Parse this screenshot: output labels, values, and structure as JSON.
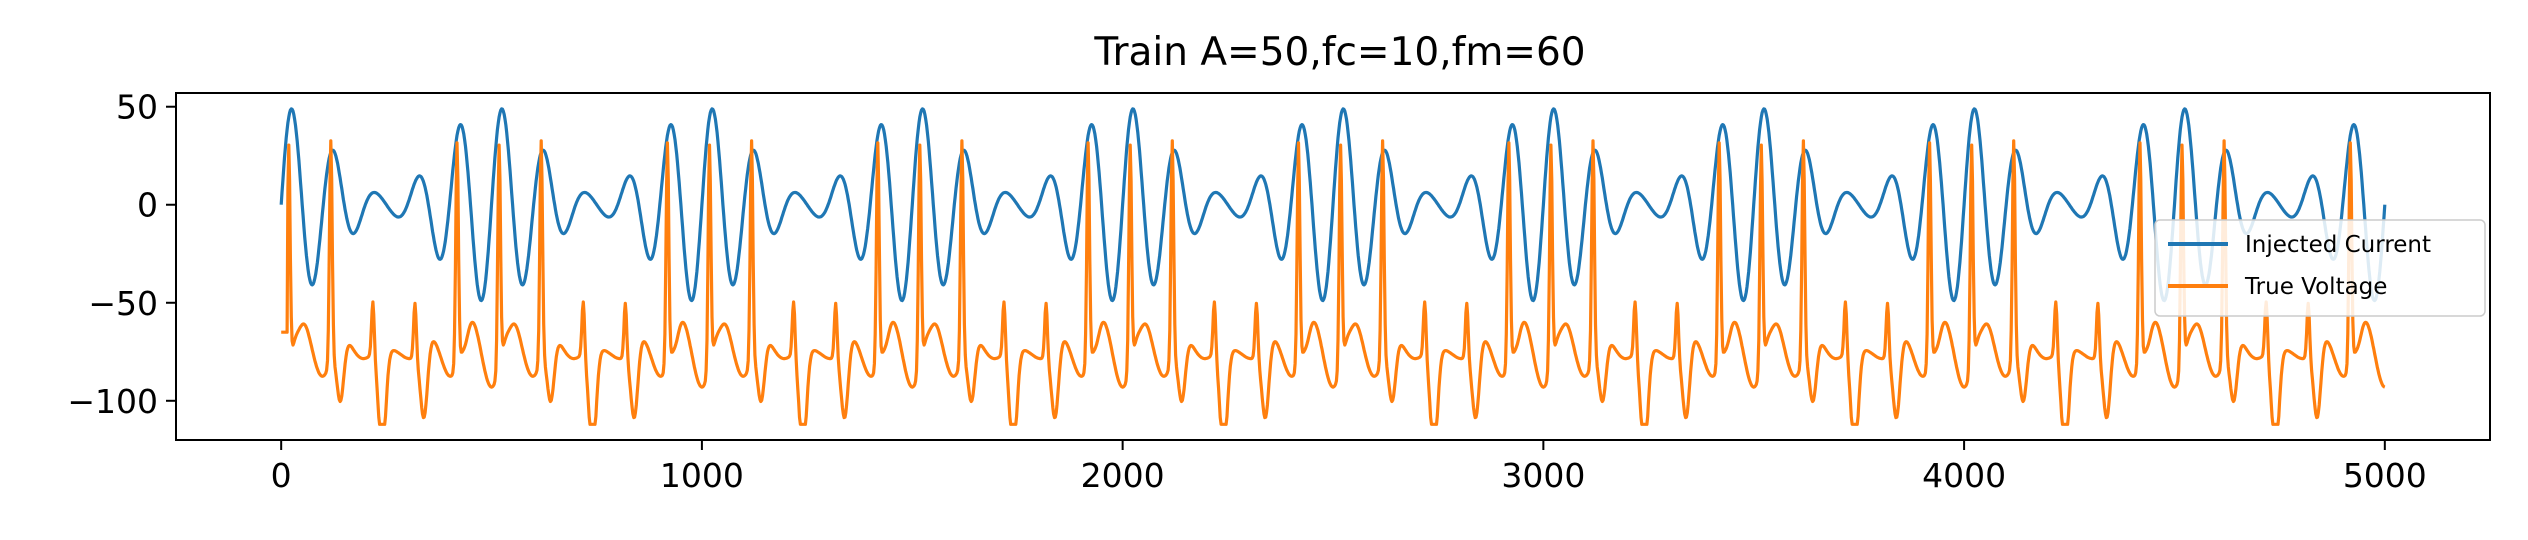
{
  "chart_data": {
    "type": "line",
    "title": "Train A=50,fc=10,fm=60",
    "xlabel": "",
    "ylabel": "",
    "xlim": [
      -250,
      5250
    ],
    "ylim": [
      -120,
      57
    ],
    "xticks": [
      0,
      1000,
      2000,
      3000,
      4000,
      5000
    ],
    "xtick_labels": [
      "0",
      "1000",
      "2000",
      "3000",
      "4000",
      "5000"
    ],
    "yticks": [
      50,
      0,
      -50,
      -100
    ],
    "ytick_labels": [
      "50",
      "0",
      "−50",
      "−100"
    ],
    "grid": false,
    "legend_position": "center-right",
    "series": [
      {
        "name": "Injected Current",
        "color": "#1f77b4",
        "x_range": [
          0,
          5000
        ],
        "formula": "A*sin(2*pi*t/100)*(0.55+0.45*cos(2*pi*t/500))",
        "amplitude": 50,
        "carrier_period": 100,
        "envelope_period": 500
      },
      {
        "name": "True Voltage",
        "color": "#ff7f0e",
        "x_range": [
          0,
          5000
        ],
        "resting": -65,
        "spike_peak": 48,
        "trough_min": -112
      }
    ]
  }
}
